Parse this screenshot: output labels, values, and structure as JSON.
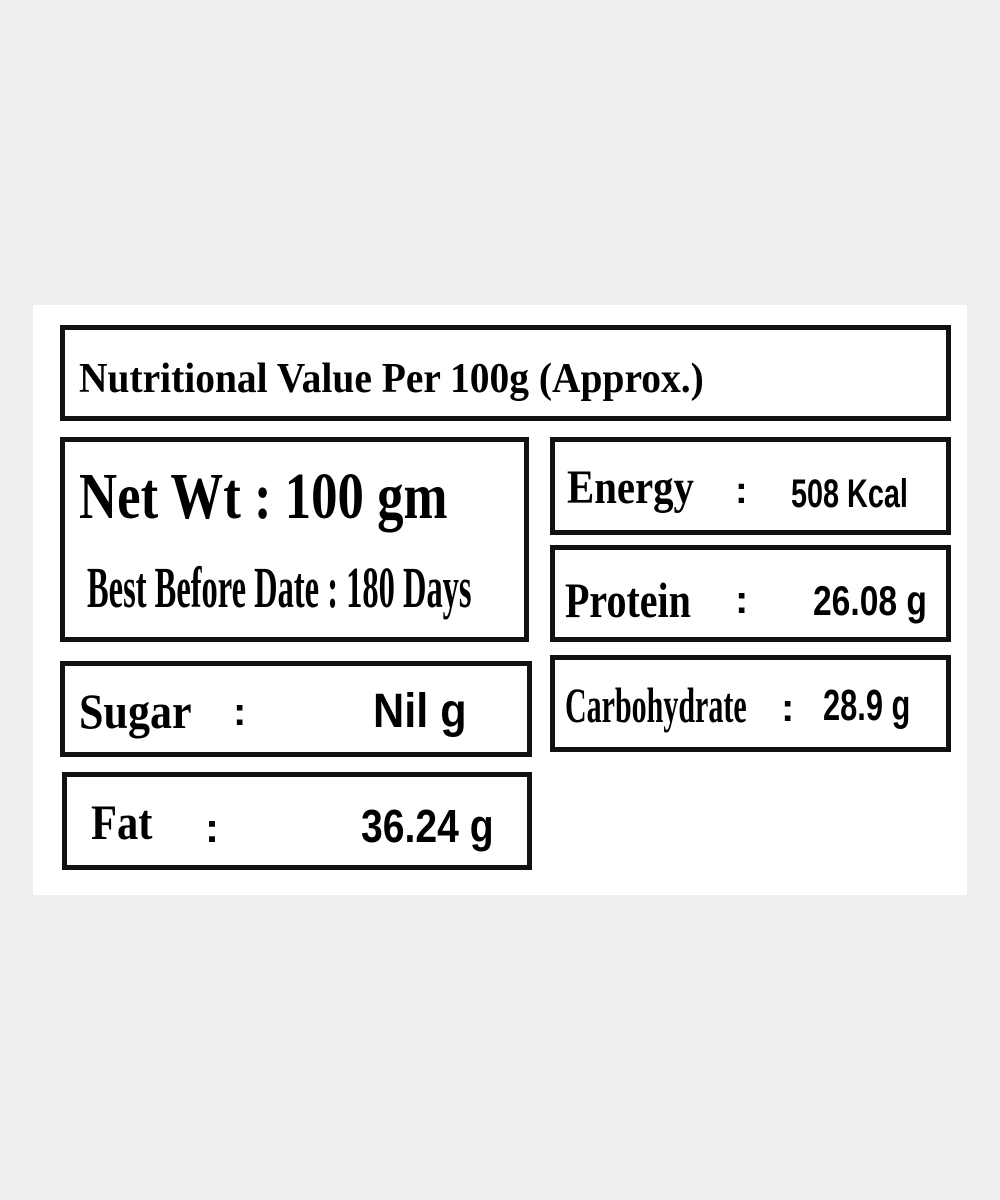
{
  "label": {
    "title": "Nutritional Value Per 100g  (Approx.)",
    "net_weight": "Net Wt : 100 gm",
    "best_before": "Best Before Date : 180 Days",
    "nutrients": {
      "energy": {
        "label": "Energy",
        "sep": ":",
        "value": "508 Kcal"
      },
      "protein": {
        "label": "Protein",
        "sep": ":",
        "value": "26.08 g"
      },
      "carbohydrate": {
        "label": "Carbohydrate",
        "sep": ":",
        "value": "28.9 g"
      },
      "sugar": {
        "label": "Sugar",
        "sep": ":",
        "value": "Nil g"
      },
      "fat": {
        "label": "Fat",
        "sep": ":",
        "value": "36.24 g"
      }
    }
  }
}
